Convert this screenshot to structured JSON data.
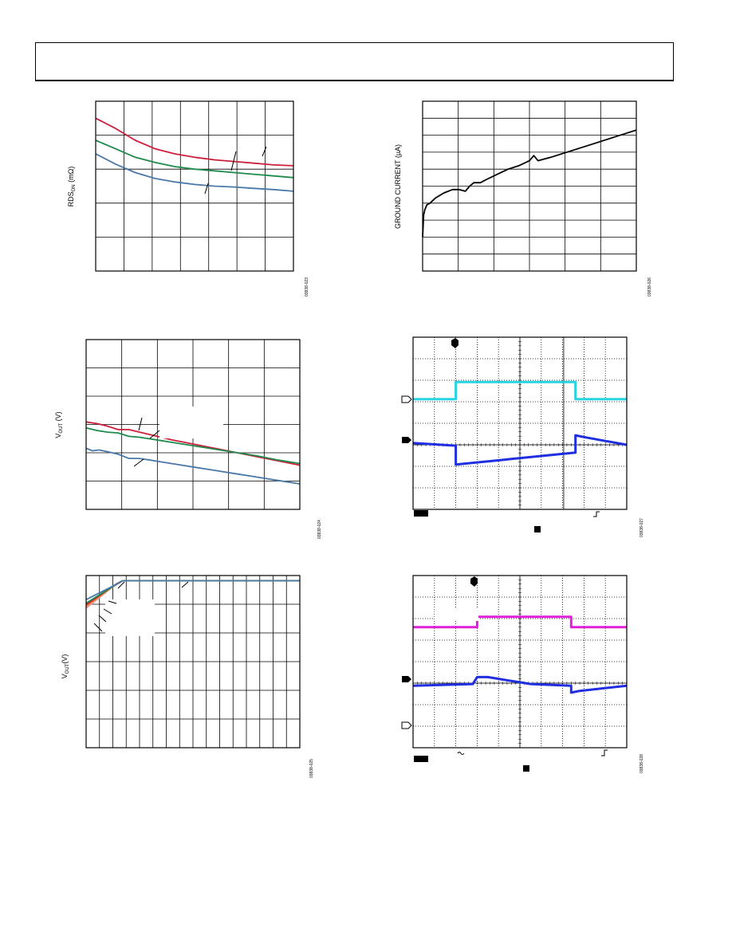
{
  "colors": {
    "red": "#cc1f3a",
    "green": "#1e8a4c",
    "steel": "#4a78a8",
    "black": "#000000",
    "cyan": "#26d4e4",
    "blue": "#1f2ee0",
    "magenta": "#e020d8",
    "orange": "#f08a30",
    "pink": "#e898b0"
  },
  "chart_data": [
    {
      "type": "line",
      "ylabel_main": "RDS",
      "ylabel_sub": "ON",
      "ylabel_unit": " (mΩ)",
      "figure_id": "03838-023",
      "xlim": [
        0,
        1
      ],
      "ylim": [
        0,
        1
      ],
      "xgrid": 7,
      "ygrid": 5,
      "series": [
        {
          "color": "red",
          "x": [
            0,
            0.1,
            0.2,
            0.3,
            0.4,
            0.5,
            0.6,
            0.7,
            0.8,
            0.9,
            1.0
          ],
          "y": [
            0.9,
            0.84,
            0.77,
            0.72,
            0.69,
            0.67,
            0.655,
            0.645,
            0.635,
            0.625,
            0.62
          ]
        },
        {
          "color": "green",
          "x": [
            0,
            0.1,
            0.2,
            0.3,
            0.4,
            0.5,
            0.6,
            0.7,
            0.8,
            0.9,
            1.0
          ],
          "y": [
            0.77,
            0.72,
            0.67,
            0.64,
            0.615,
            0.6,
            0.59,
            0.58,
            0.57,
            0.56,
            0.55
          ]
        },
        {
          "color": "steel",
          "x": [
            0,
            0.1,
            0.2,
            0.3,
            0.4,
            0.5,
            0.6,
            0.7,
            0.8,
            0.9,
            1.0
          ],
          "y": [
            0.69,
            0.63,
            0.58,
            0.545,
            0.525,
            0.51,
            0.5,
            0.495,
            0.487,
            0.48,
            0.47
          ]
        }
      ]
    },
    {
      "type": "line",
      "ylabel_main": "GROUND CURRENT (µA)",
      "figure_id": "03838-026",
      "xlim": [
        0,
        1
      ],
      "ylim": [
        0,
        1
      ],
      "xgrid": 6,
      "ygrid": 10,
      "series": [
        {
          "color": "black",
          "x": [
            0,
            0.005,
            0.01,
            0.02,
            0.035,
            0.06,
            0.1,
            0.14,
            0.17,
            0.2,
            0.22,
            0.24,
            0.27,
            0.3,
            0.35,
            0.4,
            0.45,
            0.5,
            0.52,
            0.54,
            0.6,
            0.7,
            0.8,
            0.9,
            1.0
          ],
          "y": [
            0.2,
            0.33,
            0.36,
            0.39,
            0.4,
            0.43,
            0.46,
            0.48,
            0.48,
            0.47,
            0.5,
            0.52,
            0.52,
            0.54,
            0.57,
            0.6,
            0.62,
            0.65,
            0.68,
            0.65,
            0.67,
            0.71,
            0.75,
            0.79,
            0.83
          ]
        }
      ]
    },
    {
      "type": "line",
      "ylabel_main": "V",
      "ylabel_sub": "OUT",
      "ylabel_unit": " (V)",
      "figure_id": "03838-024",
      "xlim": [
        0,
        1
      ],
      "ylim": [
        0,
        1
      ],
      "xgrid": 6,
      "ygrid": 6,
      "series": [
        {
          "color": "red",
          "x": [
            0,
            0.05,
            0.1,
            0.15,
            0.2,
            0.25,
            0.3,
            0.35,
            0.4,
            0.5,
            0.6,
            0.7,
            0.8,
            0.9,
            1.0
          ],
          "y": [
            0.515,
            0.505,
            0.49,
            0.47,
            0.47,
            0.455,
            0.44,
            0.425,
            0.41,
            0.385,
            0.36,
            0.335,
            0.31,
            0.285,
            0.26
          ]
        },
        {
          "color": "green",
          "x": [
            0,
            0.05,
            0.1,
            0.15,
            0.2,
            0.25,
            0.3,
            0.35,
            0.4,
            0.5,
            0.6,
            0.7,
            0.8,
            0.9,
            1.0
          ],
          "y": [
            0.48,
            0.465,
            0.455,
            0.45,
            0.43,
            0.425,
            0.415,
            0.405,
            0.395,
            0.375,
            0.355,
            0.335,
            0.315,
            0.29,
            0.27
          ]
        },
        {
          "color": "steel",
          "x": [
            0,
            0.03,
            0.06,
            0.1,
            0.15,
            0.2,
            0.25,
            0.3,
            0.35,
            0.4,
            0.5,
            0.6,
            0.7,
            0.8,
            0.9,
            1.0
          ],
          "y": [
            0.36,
            0.345,
            0.35,
            0.34,
            0.325,
            0.3,
            0.3,
            0.29,
            0.28,
            0.27,
            0.25,
            0.23,
            0.21,
            0.19,
            0.17,
            0.15
          ]
        }
      ]
    },
    {
      "type": "line",
      "ylabel_main": "V",
      "ylabel_sub": "OUT",
      "ylabel_unit": "(V)",
      "figure_id": "03838-025",
      "xlim": [
        0,
        1
      ],
      "ylim": [
        0,
        1
      ],
      "xgrid": 16,
      "ygrid": 6,
      "series": [
        {
          "color": "pink",
          "x": [
            0,
            0.12,
            0.17,
            1.0
          ],
          "y": [
            0.81,
            0.93,
            0.97,
            0.97
          ]
        },
        {
          "color": "orange",
          "x": [
            0,
            0.13,
            0.17,
            1.0
          ],
          "y": [
            0.82,
            0.94,
            0.97,
            0.97
          ]
        },
        {
          "color": "red",
          "x": [
            0,
            0.14,
            0.17,
            1.0
          ],
          "y": [
            0.83,
            0.95,
            0.97,
            0.97
          ]
        },
        {
          "color": "green",
          "x": [
            0,
            0.15,
            0.17,
            1.0
          ],
          "y": [
            0.84,
            0.955,
            0.97,
            0.97
          ]
        },
        {
          "color": "steel",
          "x": [
            0,
            0.16,
            0.17,
            1.0
          ],
          "y": [
            0.86,
            0.96,
            0.97,
            0.97
          ]
        }
      ]
    },
    {
      "type": "line",
      "subtype": "scope",
      "figure_id": "03838-027",
      "xgrid": 10,
      "ygrid": 8,
      "series": [
        {
          "color": "cyan",
          "x": [
            0,
            0.2,
            0.2,
            0.76,
            0.76,
            1.0
          ],
          "y": [
            0.64,
            0.64,
            0.74,
            0.74,
            0.64,
            0.64
          ]
        },
        {
          "color": "blue",
          "x": [
            0,
            0.2,
            0.2,
            0.76,
            0.76,
            0.8,
            1.0
          ],
          "y": [
            0.385,
            0.37,
            0.26,
            0.33,
            0.43,
            0.42,
            0.375
          ]
        }
      ]
    },
    {
      "type": "line",
      "subtype": "scope",
      "figure_id": "03838-028",
      "xgrid": 10,
      "ygrid": 8,
      "series": [
        {
          "color": "magenta",
          "x": [
            0,
            0.3,
            0.3,
            0.74,
            0.74,
            1.0
          ],
          "y": [
            0.7,
            0.7,
            0.76,
            0.76,
            0.7,
            0.7
          ]
        },
        {
          "color": "blue",
          "x": [
            0,
            0.28,
            0.3,
            0.35,
            0.45,
            0.5,
            0.55,
            0.74,
            0.74,
            0.78,
            1.0
          ],
          "y": [
            0.36,
            0.37,
            0.41,
            0.41,
            0.39,
            0.38,
            0.37,
            0.36,
            0.32,
            0.33,
            0.36
          ]
        }
      ]
    }
  ]
}
